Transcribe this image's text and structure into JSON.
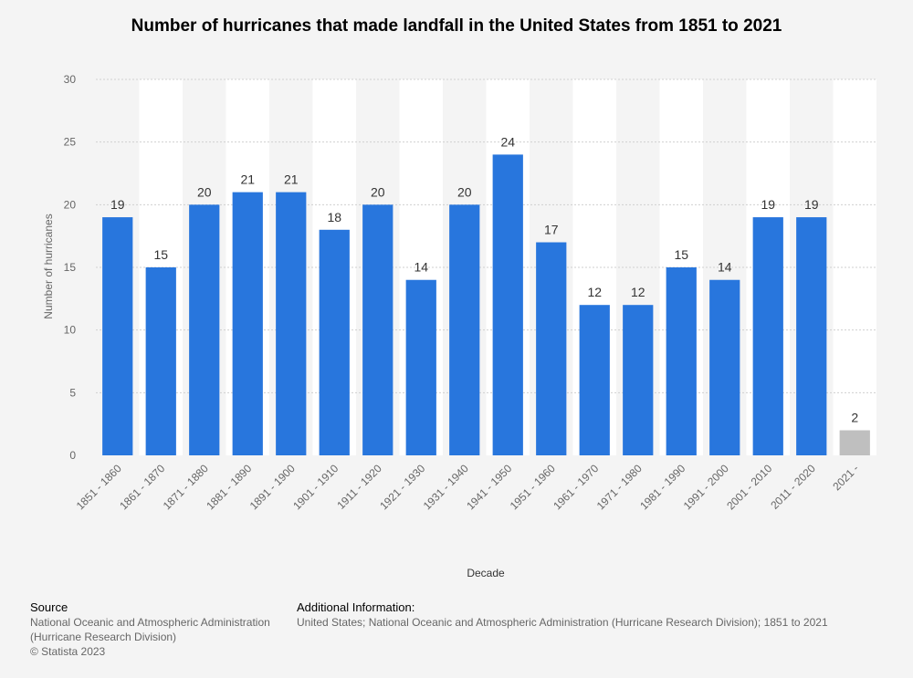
{
  "title": "Number of hurricanes that made landfall in the United States from 1851 to 2021",
  "chart_data": {
    "type": "bar",
    "xlabel": "Decade",
    "ylabel": "Number of hurricanes",
    "ylim": [
      0,
      30
    ],
    "yticks": [
      0,
      5,
      10,
      15,
      20,
      25,
      30
    ],
    "grid": true,
    "categories": [
      "1851 - 1860",
      "1861 - 1870",
      "1871 - 1880",
      "1881 - 1890",
      "1891 - 1900",
      "1901 - 1910",
      "1911 - 1920",
      "1921 - 1930",
      "1931 - 1940",
      "1941 - 1950",
      "1951 - 1960",
      "1961 - 1970",
      "1971 - 1980",
      "1981 - 1990",
      "1991 - 2000",
      "2001 - 2010",
      "2011 - 2020",
      "2021 -"
    ],
    "values": [
      19,
      15,
      20,
      21,
      21,
      18,
      20,
      14,
      20,
      24,
      17,
      12,
      12,
      15,
      14,
      19,
      19,
      2
    ],
    "colors": {
      "bar": "#2876dd",
      "bar_partial": "#bfbfbf",
      "band": "#ffffff",
      "grid": "#cfcfcf",
      "label": "#333333",
      "tick": "#666666"
    }
  },
  "footer": {
    "source_heading": "Source",
    "source_lines": [
      "National Oceanic and Atmospheric Administration",
      "(Hurricane Research Division)",
      "© Statista 2023"
    ],
    "info_heading": "Additional Information:",
    "info_text": "United States; National Oceanic and Atmospheric Administration (Hurricane Research Division); 1851 to 2021"
  }
}
